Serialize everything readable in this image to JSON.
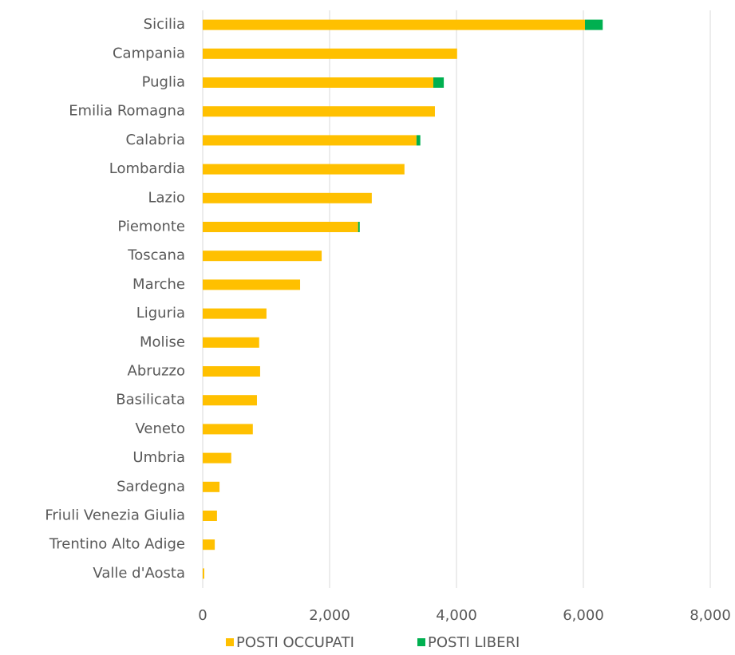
{
  "chart_data": {
    "type": "stacked_bar_horizontal",
    "categories": [
      "Sicilia",
      "Campania",
      "Puglia",
      "Emilia Romagna",
      "Calabria",
      "Lombardia",
      "Lazio",
      "Piemonte",
      "Toscana",
      "Marche",
      "Liguria",
      "Molise",
      "Abruzzo",
      "Basilicata",
      "Veneto",
      "Umbria",
      "Sardegna",
      "Friuli Venezia Giulia",
      "Trentino Alto Adige",
      "Valle d'Aosta"
    ],
    "series": [
      {
        "name": "POSTI OCCUPATI",
        "color": "#ffc000",
        "values": [
          6025,
          4010,
          3635,
          3660,
          3370,
          3180,
          2665,
          2450,
          1875,
          1535,
          1005,
          890,
          905,
          855,
          790,
          450,
          265,
          225,
          190,
          25
        ]
      },
      {
        "name": "POSTI LIBERI",
        "color": "#00b050",
        "values": [
          280,
          0,
          165,
          0,
          60,
          0,
          0,
          25,
          0,
          0,
          0,
          0,
          0,
          0,
          0,
          0,
          0,
          0,
          0,
          0
        ]
      }
    ],
    "xlim": [
      0,
      8000
    ],
    "xticks": [
      0,
      {
        "value": 2000,
        "label": "2,000"
      },
      {
        "value": 4000,
        "label": "4,000"
      },
      {
        "value": 6000,
        "label": "6,000"
      },
      {
        "value": 8000,
        "label": "8,000"
      }
    ],
    "grid": true,
    "legend": "bottom"
  }
}
